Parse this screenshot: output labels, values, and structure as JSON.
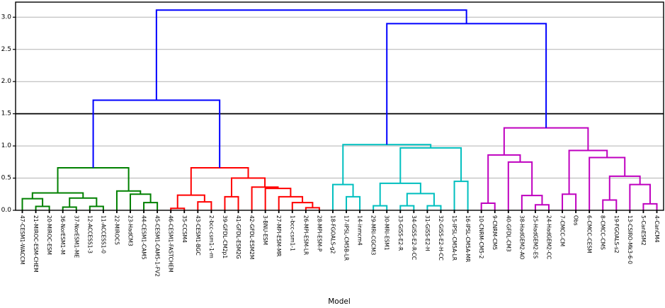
{
  "chart_data": {
    "type": "dendrogram",
    "title": "",
    "xlabel": "Model",
    "ylabel": "",
    "ylim": [
      0,
      3.23
    ],
    "yticks": [
      0.0,
      0.5,
      1.0,
      1.5,
      2.0,
      2.5,
      3.0
    ],
    "grid": true,
    "threshold_line": {
      "y": 1.5,
      "color": "#000000"
    },
    "colors": {
      "green": "#008000",
      "red": "#ff0000",
      "cyan": "#00bfbf",
      "magenta": "#bf00bf",
      "blue": "#0000ff",
      "grid": "#b2b2b2",
      "axis": "#000000"
    },
    "leaves": [
      "47-CESM1-WACCM",
      "21-MIROC-ESM-CHEM",
      "20-MIROC-ESM",
      "36-NorESM1-M",
      "37-NorESM1-ME",
      "12-ACCESS1-3",
      "11-ACCESS1-0",
      "22-MIROC5",
      "23-HadCM3",
      "44-CESM1-CAM5",
      "45-CESM1-CAM5-1-FV2",
      "46-CESM1-FASTCHEM",
      "35-CCSM4",
      "43-CESM1-BGC",
      "2-bcc-csm1-1-m",
      "39-GFDL-CM2p1",
      "41-GFDL-ESM2G",
      "42-GFDL-ESM2M",
      "3-BNU-ESM",
      "27-MPI-ESM-MR",
      "1-bcc-csm1-1",
      "26-MPI-ESM-LR",
      "28-MPI-ESM-P",
      "18-FGOALS-g2",
      "17-IPSL-CM5B-LR",
      "14-inmcm4",
      "29-MRI-CGCM3",
      "30-MRI-ESM1",
      "33-GISS-E2-R",
      "34-GISS-E2-R-CC",
      "31-GISS-E2-H",
      "32-GISS-E2-H-CC",
      "15-IPSL-CM5A-LR",
      "16-IPSL-CM5A-MR",
      "10-CNRM-CM5-2",
      "9-CNRM-CM5",
      "40-GFDL-CM3",
      "38-HadGEM2-AO",
      "25-HadGEM2-ES",
      "24-HadGEM2-CC",
      "7-CMCC-CM",
      "Obs",
      "6-CMCC-CESM",
      "8-CMCC-CMS",
      "19-FGOALS-s2",
      "13-CSIRO-Mk3-6-0",
      "5-CanESM2",
      "4-CanCM4"
    ],
    "merges": [
      [
        "G1",
        1,
        2,
        0.06,
        "green"
      ],
      [
        "G2",
        0,
        "G1",
        0.18,
        "green"
      ],
      [
        "G3",
        3,
        4,
        0.05,
        "green"
      ],
      [
        "G4",
        5,
        6,
        0.06,
        "green"
      ],
      [
        "G5",
        "G3",
        "G4",
        0.19,
        "green"
      ],
      [
        "G6",
        "G2",
        "G5",
        0.27,
        "green"
      ],
      [
        "G7",
        9,
        10,
        0.12,
        "green"
      ],
      [
        "G8",
        8,
        "G7",
        0.25,
        "green"
      ],
      [
        "G9",
        7,
        "G8",
        0.3,
        "green"
      ],
      [
        "GR",
        "G6",
        "G9",
        0.66,
        "green"
      ],
      [
        "R1",
        11,
        12,
        0.03,
        "red"
      ],
      [
        "R2",
        13,
        14,
        0.13,
        "red"
      ],
      [
        "R3",
        "R1",
        "R2",
        0.235,
        "red"
      ],
      [
        "R4",
        15,
        16,
        0.21,
        "red"
      ],
      [
        "R5",
        21,
        22,
        0.04,
        "red"
      ],
      [
        "R6",
        20,
        "R5",
        0.12,
        "red"
      ],
      [
        "R7",
        19,
        "R6",
        0.21,
        "red"
      ],
      [
        "R8",
        18,
        "R7",
        0.34,
        "red"
      ],
      [
        "R9",
        17,
        "R8",
        0.36,
        "red"
      ],
      [
        "R10",
        "R4",
        "R9",
        0.5,
        "red"
      ],
      [
        "RR",
        "R3",
        "R10",
        0.66,
        "red"
      ],
      [
        "C1",
        24,
        25,
        0.21,
        "cyan"
      ],
      [
        "C2",
        23,
        "C1",
        0.4,
        "cyan"
      ],
      [
        "C3",
        26,
        27,
        0.07,
        "cyan"
      ],
      [
        "C4",
        28,
        29,
        0.07,
        "cyan"
      ],
      [
        "C5",
        30,
        31,
        0.07,
        "cyan"
      ],
      [
        "C6",
        "C4",
        "C5",
        0.26,
        "cyan"
      ],
      [
        "C7",
        "C3",
        "C6",
        0.42,
        "cyan"
      ],
      [
        "C8",
        32,
        33,
        0.45,
        "cyan"
      ],
      [
        "C9",
        "C7",
        "C8",
        0.97,
        "cyan"
      ],
      [
        "CR",
        "C2",
        "C9",
        1.02,
        "cyan"
      ],
      [
        "M1",
        34,
        35,
        0.11,
        "magenta"
      ],
      [
        "M2",
        38,
        39,
        0.085,
        "magenta"
      ],
      [
        "M3",
        37,
        "M2",
        0.23,
        "magenta"
      ],
      [
        "M4",
        36,
        "M3",
        0.75,
        "magenta"
      ],
      [
        "M5",
        "M1",
        "M4",
        0.86,
        "magenta"
      ],
      [
        "M6",
        40,
        41,
        0.25,
        "magenta"
      ],
      [
        "M7",
        43,
        44,
        0.16,
        "magenta"
      ],
      [
        "M8",
        46,
        47,
        0.1,
        "magenta"
      ],
      [
        "M9",
        45,
        "M8",
        0.4,
        "magenta"
      ],
      [
        "M10",
        "M7",
        "M9",
        0.53,
        "magenta"
      ],
      [
        "M11",
        42,
        "M10",
        0.82,
        "magenta"
      ],
      [
        "M12",
        "M6",
        "M11",
        0.93,
        "magenta"
      ],
      [
        "MR",
        "M5",
        "M12",
        1.28,
        "magenta"
      ],
      [
        "B1",
        "GR",
        "RR",
        1.71,
        "blue"
      ],
      [
        "B2",
        "CR",
        "MR",
        2.9,
        "blue"
      ],
      [
        "B3",
        "B1",
        "B2",
        3.11,
        "blue"
      ]
    ]
  }
}
